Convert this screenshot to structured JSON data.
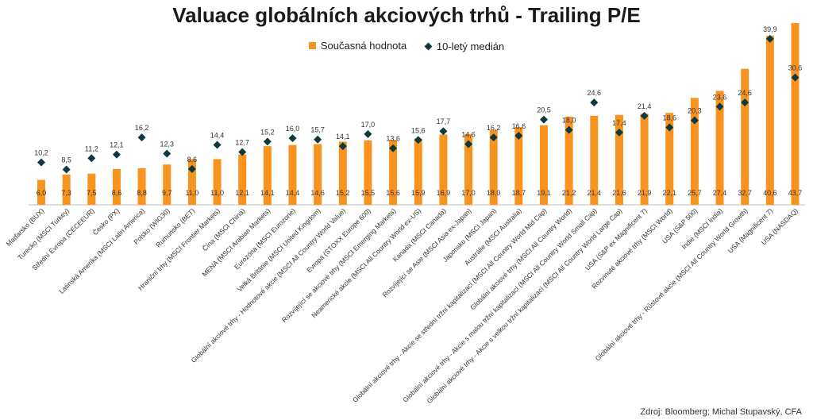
{
  "chart_data": {
    "type": "bar",
    "title": "Valuace globálních akciových trhů - Trailing P/E",
    "categories": [
      "Maďarsko (BUX)",
      "Turecko (MSCI Turkey)",
      "Střední Evropa (CECEEUR)",
      "Česko (PX)",
      "Latinská Amerika (MSCI Latin America)",
      "Polsko (WIG30)",
      "Rumunsko (BET)",
      "Hraniční trhy (MSCI Frontier Markets)",
      "Čína (MSCI China)",
      "MENA (MSCI Arabian Markets)",
      "Eurozóna (MSCI Eurozone)",
      "Velká Británie (MSCI United Kingdom)",
      "Globální akciové trhy - Hodnotové akcie (MSCI All Country World Value)",
      "Evropa (STOXX Europe 600)",
      "Rozvíjející se akciové trhy (MSCI Emerging Markets)",
      "Neamerické akcie (MSCI All Country World ex-US)",
      "Kanada (MSCI Canada)",
      "Rozvíjející se Asie (MSCI Asia ex-Japan)",
      "Japonsko (MSCI Japan)",
      "Austrálie (MSCI Australia)",
      "Globální akciové trhy - Akcie se střední tržní kapitalizací (MSCI All Country World Mid Cap)",
      "Globální akciové trhy (MSCI All Country World)",
      "Globální akciové trhy - Akcie s malou tržní kapitalizací (MSCI All Country World Small Cap)",
      "Globální akciové trhy - Akcie s velkou tržní kapitalizací (MSCI All Country World Large Cap)",
      "USA (S&P ex Magnificent 7)",
      "Rozvinuté akciové trhy (MSCI World)",
      "USA (S&P 500)",
      "Indie (MSCI India)",
      "Globální akciové trhy - Růstové akcie (MSCI All Country World Growth)",
      "USA (Magnificent 7)",
      "USA (NASDAQ)"
    ],
    "series": [
      {
        "name": "Současná hodnota",
        "type": "bar",
        "values": [
          6.0,
          7.3,
          7.5,
          8.6,
          8.8,
          9.7,
          11.0,
          11.0,
          12.1,
          14.1,
          14.4,
          14.6,
          15.2,
          15.5,
          15.6,
          15.9,
          16.9,
          17.0,
          18.0,
          18.7,
          19.1,
          21.2,
          21.4,
          21.6,
          21.9,
          22.1,
          25.7,
          27.4,
          32.7,
          40.6,
          43.7
        ],
        "labels": [
          "6,0",
          "7,3",
          "7,5",
          "8,6",
          "8,8",
          "9,7",
          "11,0",
          "11,0",
          "12,1",
          "14,1",
          "14,4",
          "14,6",
          "15,2",
          "15,5",
          "15,6",
          "15,9",
          "16,9",
          "17,0",
          "18,0",
          "18,7",
          "19,1",
          "21,2",
          "21,4",
          "21,6",
          "21,9",
          "22,1",
          "25,7",
          "27,4",
          "32,7",
          "40,6",
          "43,7"
        ]
      },
      {
        "name": "10-letý medián",
        "type": "scatter",
        "marker": "diamond",
        "values": [
          10.2,
          8.5,
          11.2,
          12.1,
          16.2,
          12.3,
          8.6,
          14.4,
          12.7,
          15.2,
          16.0,
          15.7,
          14.1,
          17.0,
          13.6,
          15.6,
          17.7,
          14.6,
          16.2,
          16.6,
          20.5,
          18.0,
          24.6,
          17.4,
          21.4,
          18.6,
          20.3,
          23.6,
          24.6,
          39.9,
          30.6
        ],
        "labels": [
          "10,2",
          "8,5",
          "11,2",
          "12,1",
          "16,2",
          "12,3",
          "8,6",
          "14,4",
          "12,7",
          "15,2",
          "16,0",
          "15,7",
          "14,1",
          "17,0",
          "13,6",
          "15,6",
          "17,7",
          "14,6",
          "16,2",
          "16,6",
          "20,5",
          "18,0",
          "24,6",
          "17,4",
          "21,4",
          "18,6",
          "20,3",
          "23,6",
          "24,6",
          "39,9",
          "30,6"
        ]
      }
    ],
    "ylim": [
      0,
      43.7
    ],
    "grid": false,
    "legend_position": "top",
    "colors": {
      "bar": "#F7931E",
      "marker": "#0E3A3F",
      "axis": "#bfbfbf"
    }
  },
  "legend": {
    "current_label": "Současná hodnota",
    "median_label": "10-letý medián"
  },
  "source": "Zdroj: Bloomberg; Michal Stupavský, CFA"
}
